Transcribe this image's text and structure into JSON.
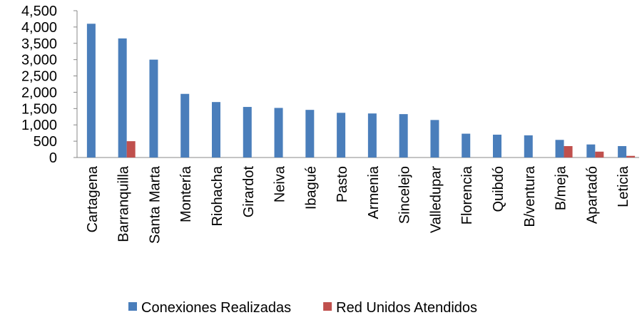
{
  "chart_data": {
    "type": "bar",
    "categories": [
      "Cartagena",
      "Barranquilla",
      "Santa Marta",
      "Montería",
      "Riohacha",
      "Girardot",
      "Neiva",
      "Ibagué",
      "Pasto",
      "Armenia",
      "Sincelejo",
      "Valledupar",
      "Florencia",
      "Quibdó",
      "B/ventura",
      "B/meja",
      "Apartadó",
      "Leticia"
    ],
    "series": [
      {
        "name": "Conexiones Realizadas",
        "color": "#4a7ebb",
        "values": [
          4100,
          3650,
          3000,
          1950,
          1700,
          1550,
          1520,
          1460,
          1370,
          1350,
          1330,
          1150,
          730,
          700,
          680,
          540,
          400,
          350
        ]
      },
      {
        "name": "Red Unidos Atendidos",
        "color": "#c0504d",
        "values": [
          0,
          500,
          0,
          0,
          0,
          0,
          0,
          0,
          0,
          0,
          0,
          0,
          0,
          0,
          0,
          350,
          180,
          50
        ]
      }
    ],
    "ylim": [
      0,
      4500
    ],
    "yticks": [
      0,
      500,
      {
        "value": 1000,
        "label": "1,000"
      },
      {
        "value": 1500,
        "label": "1,500"
      },
      {
        "value": 2000,
        "label": "2,000"
      },
      {
        "value": 2500,
        "label": "2,500"
      },
      {
        "value": 3000,
        "label": "3,000"
      },
      {
        "value": 3500,
        "label": "3,500"
      },
      {
        "value": 4000,
        "label": "4,000"
      },
      {
        "value": 4500,
        "label": "4,500"
      }
    ],
    "legend": "bottom"
  }
}
